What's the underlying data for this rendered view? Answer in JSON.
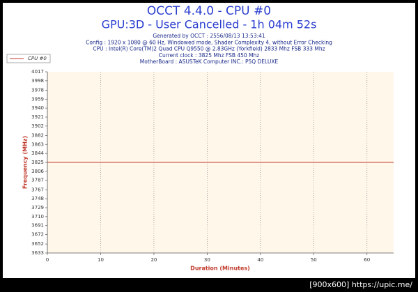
{
  "chart_data": {
    "type": "line",
    "title": "OCCT 4.4.0 - CPU #0",
    "subtitle": "GPU:3D - User Cancelled - 1h 04m 52s",
    "info": [
      "Generated by OCCT : 2556/08/13 13:53:41",
      "Config : 1920 x 1080 @ 60 Hz, Windowed mode, Shader Complexity 4, without Error Checking",
      "CPU : Intel(R) Core(TM)2 Quad CPU Q9550 @ 2.83GHz (Yorkfield) 2833 Mhz FSB 333 Mhz",
      "Current clock : 3825 Mhz FSB 450 Mhz",
      "MotherBoard : ASUSTeK Computer INC.: P5Q DELUXE"
    ],
    "x_label": "Duration (Minutes)",
    "y_label": "Frequency (MHz)",
    "x": [
      0,
      65
    ],
    "series": [
      {
        "name": "CPU #0",
        "color": "#c0392b",
        "values": [
          3825,
          3825
        ]
      }
    ],
    "xlim": [
      0,
      65
    ],
    "xticks": [
      0,
      10,
      20,
      30,
      40,
      50,
      60
    ],
    "ylim": [
      3633,
      4017
    ],
    "yticks": [
      3633,
      3652,
      3672,
      3691,
      3710,
      3729,
      3748,
      3767,
      3787,
      3806,
      3825,
      3844,
      3863,
      3882,
      3902,
      3921,
      3940,
      3959,
      3978,
      3998,
      4017
    ],
    "grid": true
  },
  "watermark": "[900x600] https://upic.me/"
}
